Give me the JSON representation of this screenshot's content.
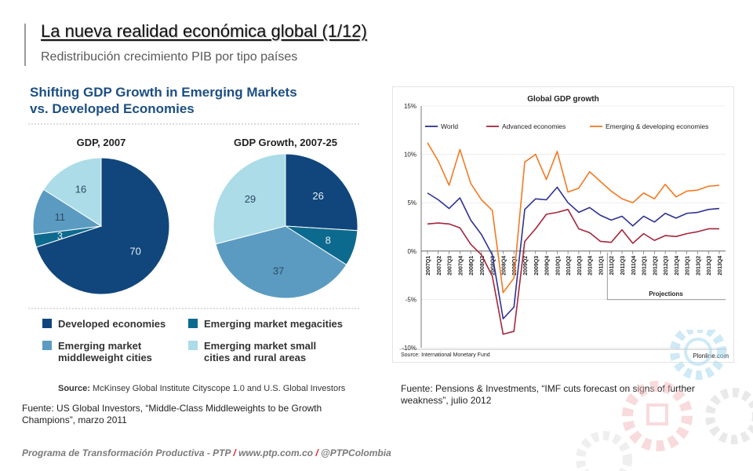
{
  "slide": {
    "title": "La nueva realidad económica global (1/12)",
    "subtitle": "Redistribución crecimiento PIB por tipo países"
  },
  "left_figure": {
    "title_line1": "Shifting GDP Growth in Emerging Markets",
    "title_line2": "vs. Developed Economies",
    "source_label": "Source:",
    "source_text": " McKinsey Global Institute Cityscope 1.0 and U.S. Global Investors",
    "legend": [
      {
        "label_lines": [
          "Developed economies"
        ],
        "color": "#10467b"
      },
      {
        "label_lines": [
          "Emerging market megacities"
        ],
        "color": "#0d6a8f"
      },
      {
        "label_lines": [
          "Emerging market",
          "middleweight cities"
        ],
        "color": "#5b9bc1"
      },
      {
        "label_lines": [
          "Emerging market small",
          "cities and rural areas"
        ],
        "color": "#abdce7"
      }
    ],
    "caption": "Fuente: US Global Investors, “Middle-Class Middleweights to be Growth Champions”, marzo 2011"
  },
  "right_figure": {
    "footer_left": "Source: International Monetary Fund",
    "footer_right": "Plonline.com",
    "projections_label": "Projections",
    "caption": "Fuente: Pensions & Investments, “IMF cuts forecast on signs of further weakness”, julio 2012"
  },
  "footer": {
    "part1": "Programa de Transformación Productiva - PTP ",
    "slash1": "/",
    "part2": " www.ptp.com.co ",
    "slash2": "/",
    "part3": " @PTPColombia"
  },
  "chart_data": [
    {
      "type": "pie",
      "title": "GDP, 2007",
      "labels": [
        "Developed economies",
        "Emerging market megacities",
        "Emerging market middleweight cities",
        "Emerging market small cities and rural areas"
      ],
      "values": [
        70,
        3,
        11,
        16
      ],
      "colors": [
        "#10467b",
        "#0d6a8f",
        "#5b9bc1",
        "#abdce7"
      ]
    },
    {
      "type": "pie",
      "title": "GDP Growth, 2007-25",
      "labels": [
        "Developed economies",
        "Emerging market megacities",
        "Emerging market middleweight cities",
        "Emerging market small cities and rural areas"
      ],
      "values": [
        26,
        8,
        37,
        29
      ],
      "colors": [
        "#10467b",
        "#0d6a8f",
        "#5b9bc1",
        "#abdce7"
      ]
    },
    {
      "type": "line",
      "title": "Global GDP growth",
      "x": [
        "2007Q1",
        "2007Q2",
        "2007Q3",
        "2007Q4",
        "2008Q1",
        "2008Q2",
        "2008Q3",
        "2008Q4",
        "2009Q1",
        "2009Q2",
        "2009Q3",
        "2009Q4",
        "2010Q1",
        "2010Q2",
        "2010Q3",
        "2010Q4",
        "2011Q1",
        "2011Q2",
        "2011Q3",
        "2011Q4",
        "2012Q1",
        "2012Q2",
        "2012Q3",
        "2012Q4",
        "2013Q1",
        "2013Q2",
        "2013Q3",
        "2013Q4"
      ],
      "ylim": [
        -10,
        15
      ],
      "yticks": [
        -10,
        -5,
        0,
        5,
        10,
        15
      ],
      "ytick_labels": [
        "-10%",
        "-5%",
        "0%",
        "5%",
        "10%",
        "15%"
      ],
      "series": [
        {
          "name": "World",
          "color": "#2e3192",
          "values": [
            6.0,
            5.3,
            4.4,
            5.5,
            3.2,
            1.7,
            -0.4,
            -7.0,
            -5.8,
            4.3,
            5.4,
            5.3,
            6.6,
            5.0,
            4.0,
            4.5,
            3.7,
            3.2,
            3.6,
            2.6,
            3.6,
            3.0,
            3.9,
            3.4,
            3.9,
            4.0,
            4.3,
            4.4
          ]
        },
        {
          "name": "Advanced economies",
          "color": "#a3263c",
          "values": [
            2.8,
            2.9,
            2.8,
            2.4,
            0.7,
            -0.4,
            -2.6,
            -8.6,
            -8.3,
            1.0,
            2.3,
            3.8,
            4.0,
            4.3,
            2.3,
            1.9,
            1.0,
            0.9,
            2.2,
            0.8,
            1.8,
            1.1,
            1.6,
            1.5,
            1.8,
            2.0,
            2.3,
            2.3
          ]
        },
        {
          "name": "Emerging & developing economies",
          "color": "#f47920",
          "values": [
            11.2,
            9.3,
            6.8,
            10.5,
            7.0,
            5.3,
            4.2,
            -4.3,
            -2.8,
            9.2,
            10.0,
            7.4,
            10.3,
            6.1,
            6.5,
            8.2,
            7.2,
            6.2,
            5.4,
            5.0,
            6.0,
            5.4,
            6.9,
            5.6,
            6.2,
            6.3,
            6.7,
            6.8
          ]
        }
      ]
    }
  ]
}
